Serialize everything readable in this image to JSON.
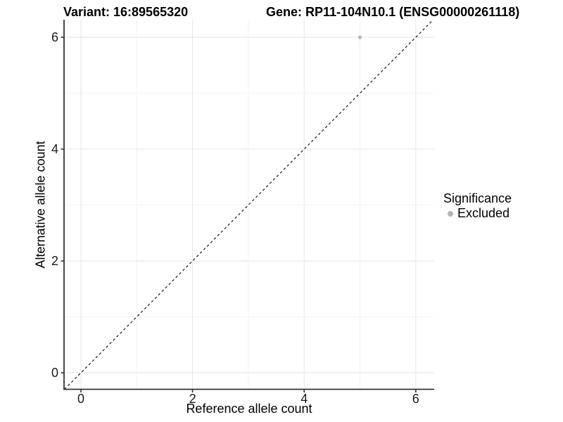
{
  "chart_data": {
    "type": "scatter",
    "titles": {
      "left": "Variant: 16:89565320",
      "right": "Gene: RP11-104N10.1 (ENSG00000261118)"
    },
    "xlabel": "Reference allele count",
    "ylabel": "Alternative allele count",
    "xticks": [
      0,
      2,
      4,
      6
    ],
    "yticks": [
      0,
      2,
      4,
      6
    ],
    "xticks_minor": [
      1,
      3,
      5
    ],
    "yticks_minor": [
      1,
      3,
      5
    ],
    "xlim": [
      -0.3,
      6.35
    ],
    "ylim": [
      -0.29,
      6.31
    ],
    "grid": "major+minor",
    "abline": {
      "slope": 1,
      "intercept": 0,
      "style": "dashed",
      "color": "#000000"
    },
    "series": [
      {
        "name": "Excluded",
        "color": "#b4b4b4",
        "points": [
          {
            "x": 5,
            "y": 6
          }
        ]
      }
    ],
    "legend": {
      "title": "Significance",
      "position": "right",
      "entries": [
        {
          "label": "Excluded",
          "color": "#b4b4b4"
        }
      ]
    },
    "style_colors": {
      "axis_line": "#333333",
      "grid_major": "#e6e6e6",
      "grid_minor": "#f2f2f2",
      "tick_text": "#1a1a1a"
    }
  }
}
